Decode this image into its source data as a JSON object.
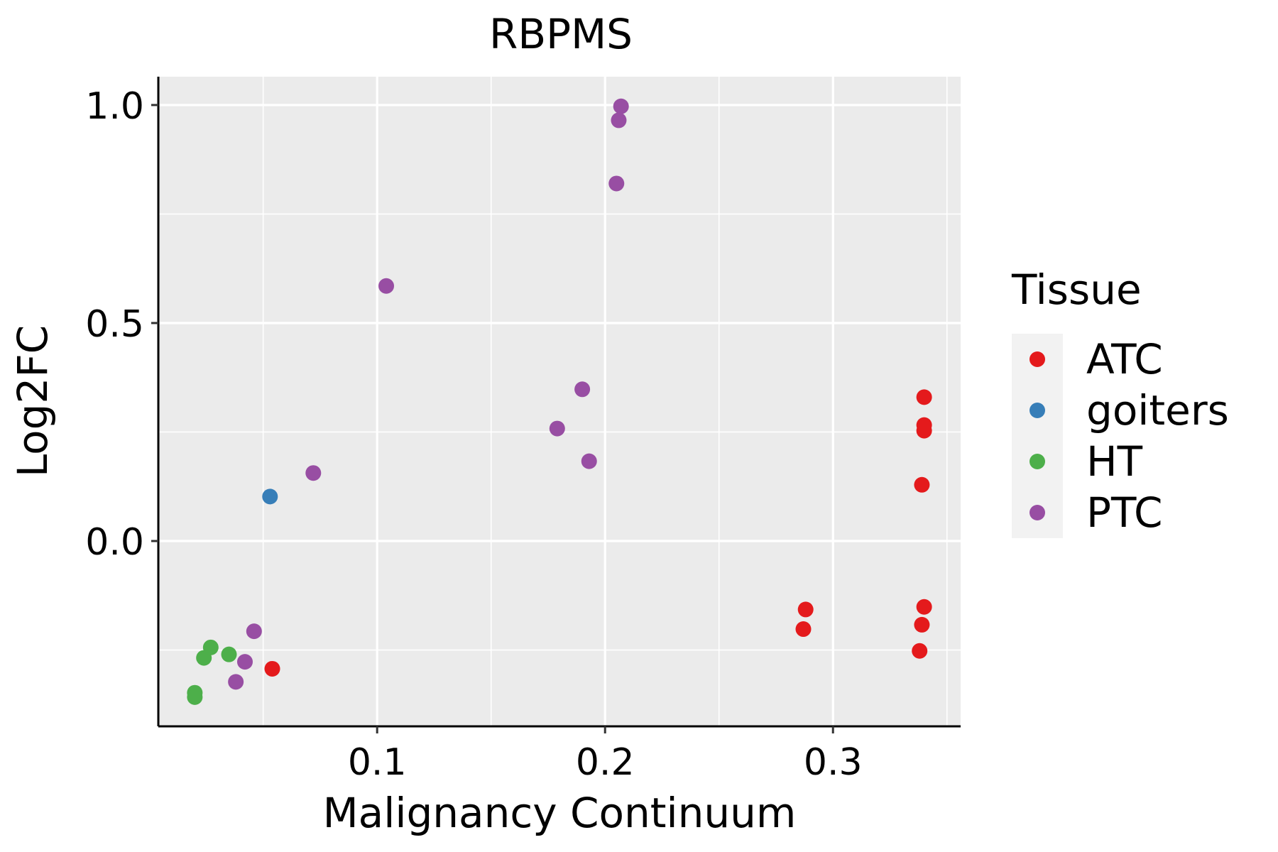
{
  "chart_data": {
    "type": "scatter",
    "title": "RBPMS",
    "xlabel": "Malignancy Continuum",
    "ylabel": "Log2FC",
    "xlim": [
      0.004,
      0.356
    ],
    "ylim": [
      -0.425,
      1.065
    ],
    "x_ticks": [
      0.1,
      0.2,
      0.3
    ],
    "x_tick_labels": [
      "0.1",
      "0.2",
      "0.3"
    ],
    "y_ticks": [
      0.0,
      0.5,
      1.0
    ],
    "y_tick_labels": [
      "0.0",
      "0.5",
      "1.0"
    ],
    "grid": true,
    "legend": {
      "title": "Tissue",
      "position": "right"
    },
    "series": [
      {
        "name": "ATC",
        "color": "#E41A1C",
        "points": [
          {
            "x": 0.054,
            "y": -0.293
          },
          {
            "x": 0.288,
            "y": -0.157
          },
          {
            "x": 0.287,
            "y": -0.202
          },
          {
            "x": 0.338,
            "y": -0.252
          },
          {
            "x": 0.339,
            "y": -0.192
          },
          {
            "x": 0.34,
            "y": -0.151
          },
          {
            "x": 0.339,
            "y": 0.129
          },
          {
            "x": 0.34,
            "y": 0.253
          },
          {
            "x": 0.34,
            "y": 0.266
          },
          {
            "x": 0.34,
            "y": 0.33
          }
        ]
      },
      {
        "name": "goiters",
        "color": "#377EB8",
        "points": [
          {
            "x": 0.053,
            "y": 0.102
          }
        ]
      },
      {
        "name": "HT",
        "color": "#4DAF4A",
        "points": [
          {
            "x": 0.02,
            "y": -0.348
          },
          {
            "x": 0.02,
            "y": -0.358
          },
          {
            "x": 0.024,
            "y": -0.268
          },
          {
            "x": 0.027,
            "y": -0.244
          },
          {
            "x": 0.035,
            "y": -0.26
          }
        ]
      },
      {
        "name": "PTC",
        "color": "#984EA3",
        "points": [
          {
            "x": 0.038,
            "y": -0.323
          },
          {
            "x": 0.042,
            "y": -0.277
          },
          {
            "x": 0.046,
            "y": -0.207
          },
          {
            "x": 0.072,
            "y": 0.156
          },
          {
            "x": 0.104,
            "y": 0.585
          },
          {
            "x": 0.179,
            "y": 0.258
          },
          {
            "x": 0.19,
            "y": 0.348
          },
          {
            "x": 0.193,
            "y": 0.183
          },
          {
            "x": 0.205,
            "y": 0.82
          },
          {
            "x": 0.206,
            "y": 0.965
          },
          {
            "x": 0.207,
            "y": 0.997
          }
        ]
      }
    ]
  }
}
